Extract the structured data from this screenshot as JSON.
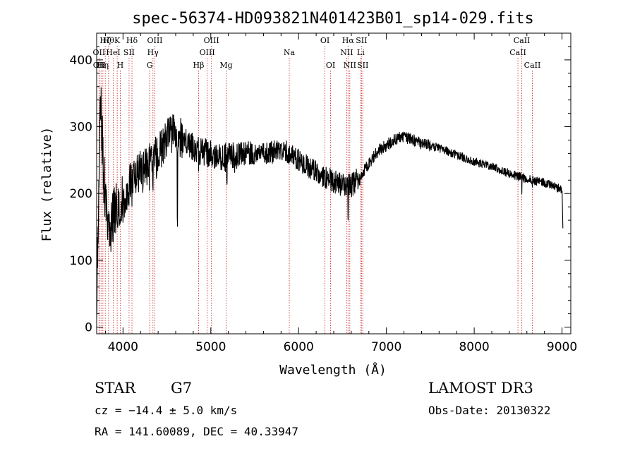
{
  "chart_data": {
    "type": "line",
    "title": "spec-56374-HD093821N401423B01_sp14-029.fits",
    "xlabel": "Wavelength (Å)",
    "ylabel": "Flux (relative)",
    "xlim": [
      3700,
      9100
    ],
    "ylim": [
      -10,
      440
    ],
    "x_ticks": [
      4000,
      5000,
      6000,
      7000,
      8000,
      9000
    ],
    "x_tick_labels": [
      "4000",
      "5000",
      "6000",
      "7000",
      "8000",
      "9000"
    ],
    "y_ticks": [
      0,
      100,
      200,
      300,
      400
    ],
    "y_tick_labels": [
      "0",
      "100",
      "200",
      "300",
      "400"
    ],
    "series": [
      {
        "name": "spectrum",
        "color": "#000000",
        "anchors": [
          [
            3700,
            20
          ],
          [
            3720,
            180
          ],
          [
            3745,
            330
          ],
          [
            3770,
            260
          ],
          [
            3800,
            180
          ],
          [
            3830,
            150
          ],
          [
            3860,
            140
          ],
          [
            3890,
            160
          ],
          [
            3920,
            170
          ],
          [
            3950,
            160
          ],
          [
            3990,
            180
          ],
          [
            4040,
            200
          ],
          [
            4080,
            215
          ],
          [
            4150,
            225
          ],
          [
            4200,
            235
          ],
          [
            4300,
            245
          ],
          [
            4400,
            260
          ],
          [
            4500,
            285
          ],
          [
            4600,
            290
          ],
          [
            4700,
            280
          ],
          [
            4800,
            268
          ],
          [
            4900,
            262
          ],
          [
            5000,
            260
          ],
          [
            5100,
            255
          ],
          [
            5200,
            255
          ],
          [
            5400,
            260
          ],
          [
            5600,
            262
          ],
          [
            5800,
            262
          ],
          [
            5900,
            262
          ],
          [
            6000,
            250
          ],
          [
            6100,
            240
          ],
          [
            6200,
            233
          ],
          [
            6300,
            225
          ],
          [
            6400,
            218
          ],
          [
            6500,
            212
          ],
          [
            6600,
            212
          ],
          [
            6700,
            225
          ],
          [
            6800,
            245
          ],
          [
            6900,
            263
          ],
          [
            7000,
            272
          ],
          [
            7100,
            282
          ],
          [
            7200,
            285
          ],
          [
            7400,
            275
          ],
          [
            7600,
            268
          ],
          [
            7800,
            258
          ],
          [
            8000,
            248
          ],
          [
            8200,
            240
          ],
          [
            8400,
            230
          ],
          [
            8600,
            222
          ],
          [
            8800,
            216
          ],
          [
            9000,
            206
          ],
          [
            9010,
            150
          ]
        ],
        "features": [
          [
            3934,
            155
          ],
          [
            3969,
            160
          ],
          [
            4102,
            190
          ],
          [
            4227,
            210
          ],
          [
            4300,
            200
          ],
          [
            4340,
            210
          ],
          [
            4383,
            230
          ],
          [
            4620,
            160
          ],
          [
            4861,
            230
          ],
          [
            5167,
            225
          ],
          [
            5183,
            220
          ],
          [
            5270,
            235
          ],
          [
            5890,
            245
          ],
          [
            6563,
            160
          ],
          [
            8542,
            205
          ],
          [
            8662,
            205
          ]
        ]
      }
    ],
    "line_markers": [
      {
        "name": "OII",
        "wavelength": 3727,
        "tier": 2
      },
      {
        "name": "OII",
        "wavelength": 3729,
        "tier": 3
      },
      {
        "name": "Hε",
        "wavelength": 3750,
        "tier": 3
      },
      {
        "name": "Hη",
        "wavelength": 3771,
        "tier": 3
      },
      {
        "name": "Hζ",
        "wavelength": 3798,
        "tier": 1
      },
      {
        "name": "Hθ",
        "wavelength": 3835,
        "tier": 1
      },
      {
        "name": "HeI",
        "wavelength": 3889,
        "tier": 2
      },
      {
        "name": "K",
        "wavelength": 3934,
        "tier": 1
      },
      {
        "name": "H",
        "wavelength": 3969,
        "tier": 3
      },
      {
        "name": "SII",
        "wavelength": 4069,
        "tier": 2
      },
      {
        "name": "Hδ",
        "wavelength": 4102,
        "tier": 1
      },
      {
        "name": "G",
        "wavelength": 4304,
        "tier": 3
      },
      {
        "name": "Hγ",
        "wavelength": 4341,
        "tier": 2
      },
      {
        "name": "OIII",
        "wavelength": 4363,
        "tier": 1
      },
      {
        "name": "Hβ",
        "wavelength": 4861,
        "tier": 3
      },
      {
        "name": "OIII",
        "wavelength": 4959,
        "tier": 2
      },
      {
        "name": "OIII",
        "wavelength": 5007,
        "tier": 1
      },
      {
        "name": "Mg",
        "wavelength": 5175,
        "tier": 3
      },
      {
        "name": "Na",
        "wavelength": 5894,
        "tier": 2
      },
      {
        "name": "OI",
        "wavelength": 6300,
        "tier": 1
      },
      {
        "name": "OI",
        "wavelength": 6364,
        "tier": 3
      },
      {
        "name": "NII",
        "wavelength": 6548,
        "tier": 2
      },
      {
        "name": "Hα",
        "wavelength": 6563,
        "tier": 1
      },
      {
        "name": "NII",
        "wavelength": 6583,
        "tier": 3
      },
      {
        "name": "Li",
        "wavelength": 6708,
        "tier": 2
      },
      {
        "name": "SII",
        "wavelength": 6716,
        "tier": 1
      },
      {
        "name": "SII",
        "wavelength": 6731,
        "tier": 3
      },
      {
        "name": "CaII",
        "wavelength": 8498,
        "tier": 2
      },
      {
        "name": "CaII",
        "wavelength": 8542,
        "tier": 1
      },
      {
        "name": "CaII",
        "wavelength": 8662,
        "tier": 3
      }
    ]
  },
  "info": {
    "object_class": "STAR",
    "subclass": "G7",
    "survey": "LAMOST DR3",
    "redshift": "cz = −14.4 ± 5.0 km/s",
    "obs_date": "Obs-Date: 20130322",
    "coords": "RA = 141.60089, DEC =  40.33947"
  },
  "colors": {
    "axes": "#000000",
    "spectrum": "#000000",
    "marker_line": "#cc3333",
    "background": "#ffffff"
  }
}
